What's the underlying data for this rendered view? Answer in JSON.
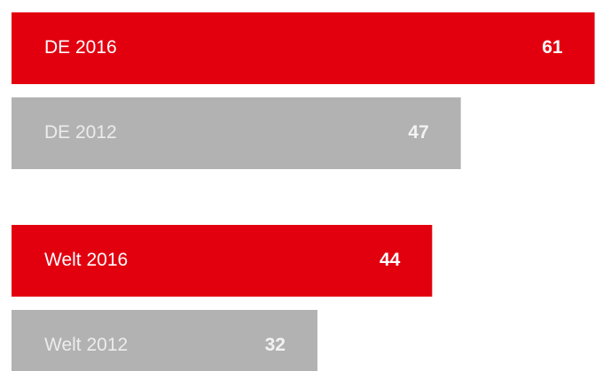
{
  "chart_data": {
    "type": "bar",
    "orientation": "horizontal",
    "categories": [
      "DE 2016",
      "DE 2012",
      "Welt 2016",
      "Welt 2012"
    ],
    "values": [
      61,
      47,
      44,
      32
    ],
    "colors": [
      "#e2000f",
      "#b2b2b2",
      "#e2000f",
      "#b2b2b2"
    ]
  }
}
